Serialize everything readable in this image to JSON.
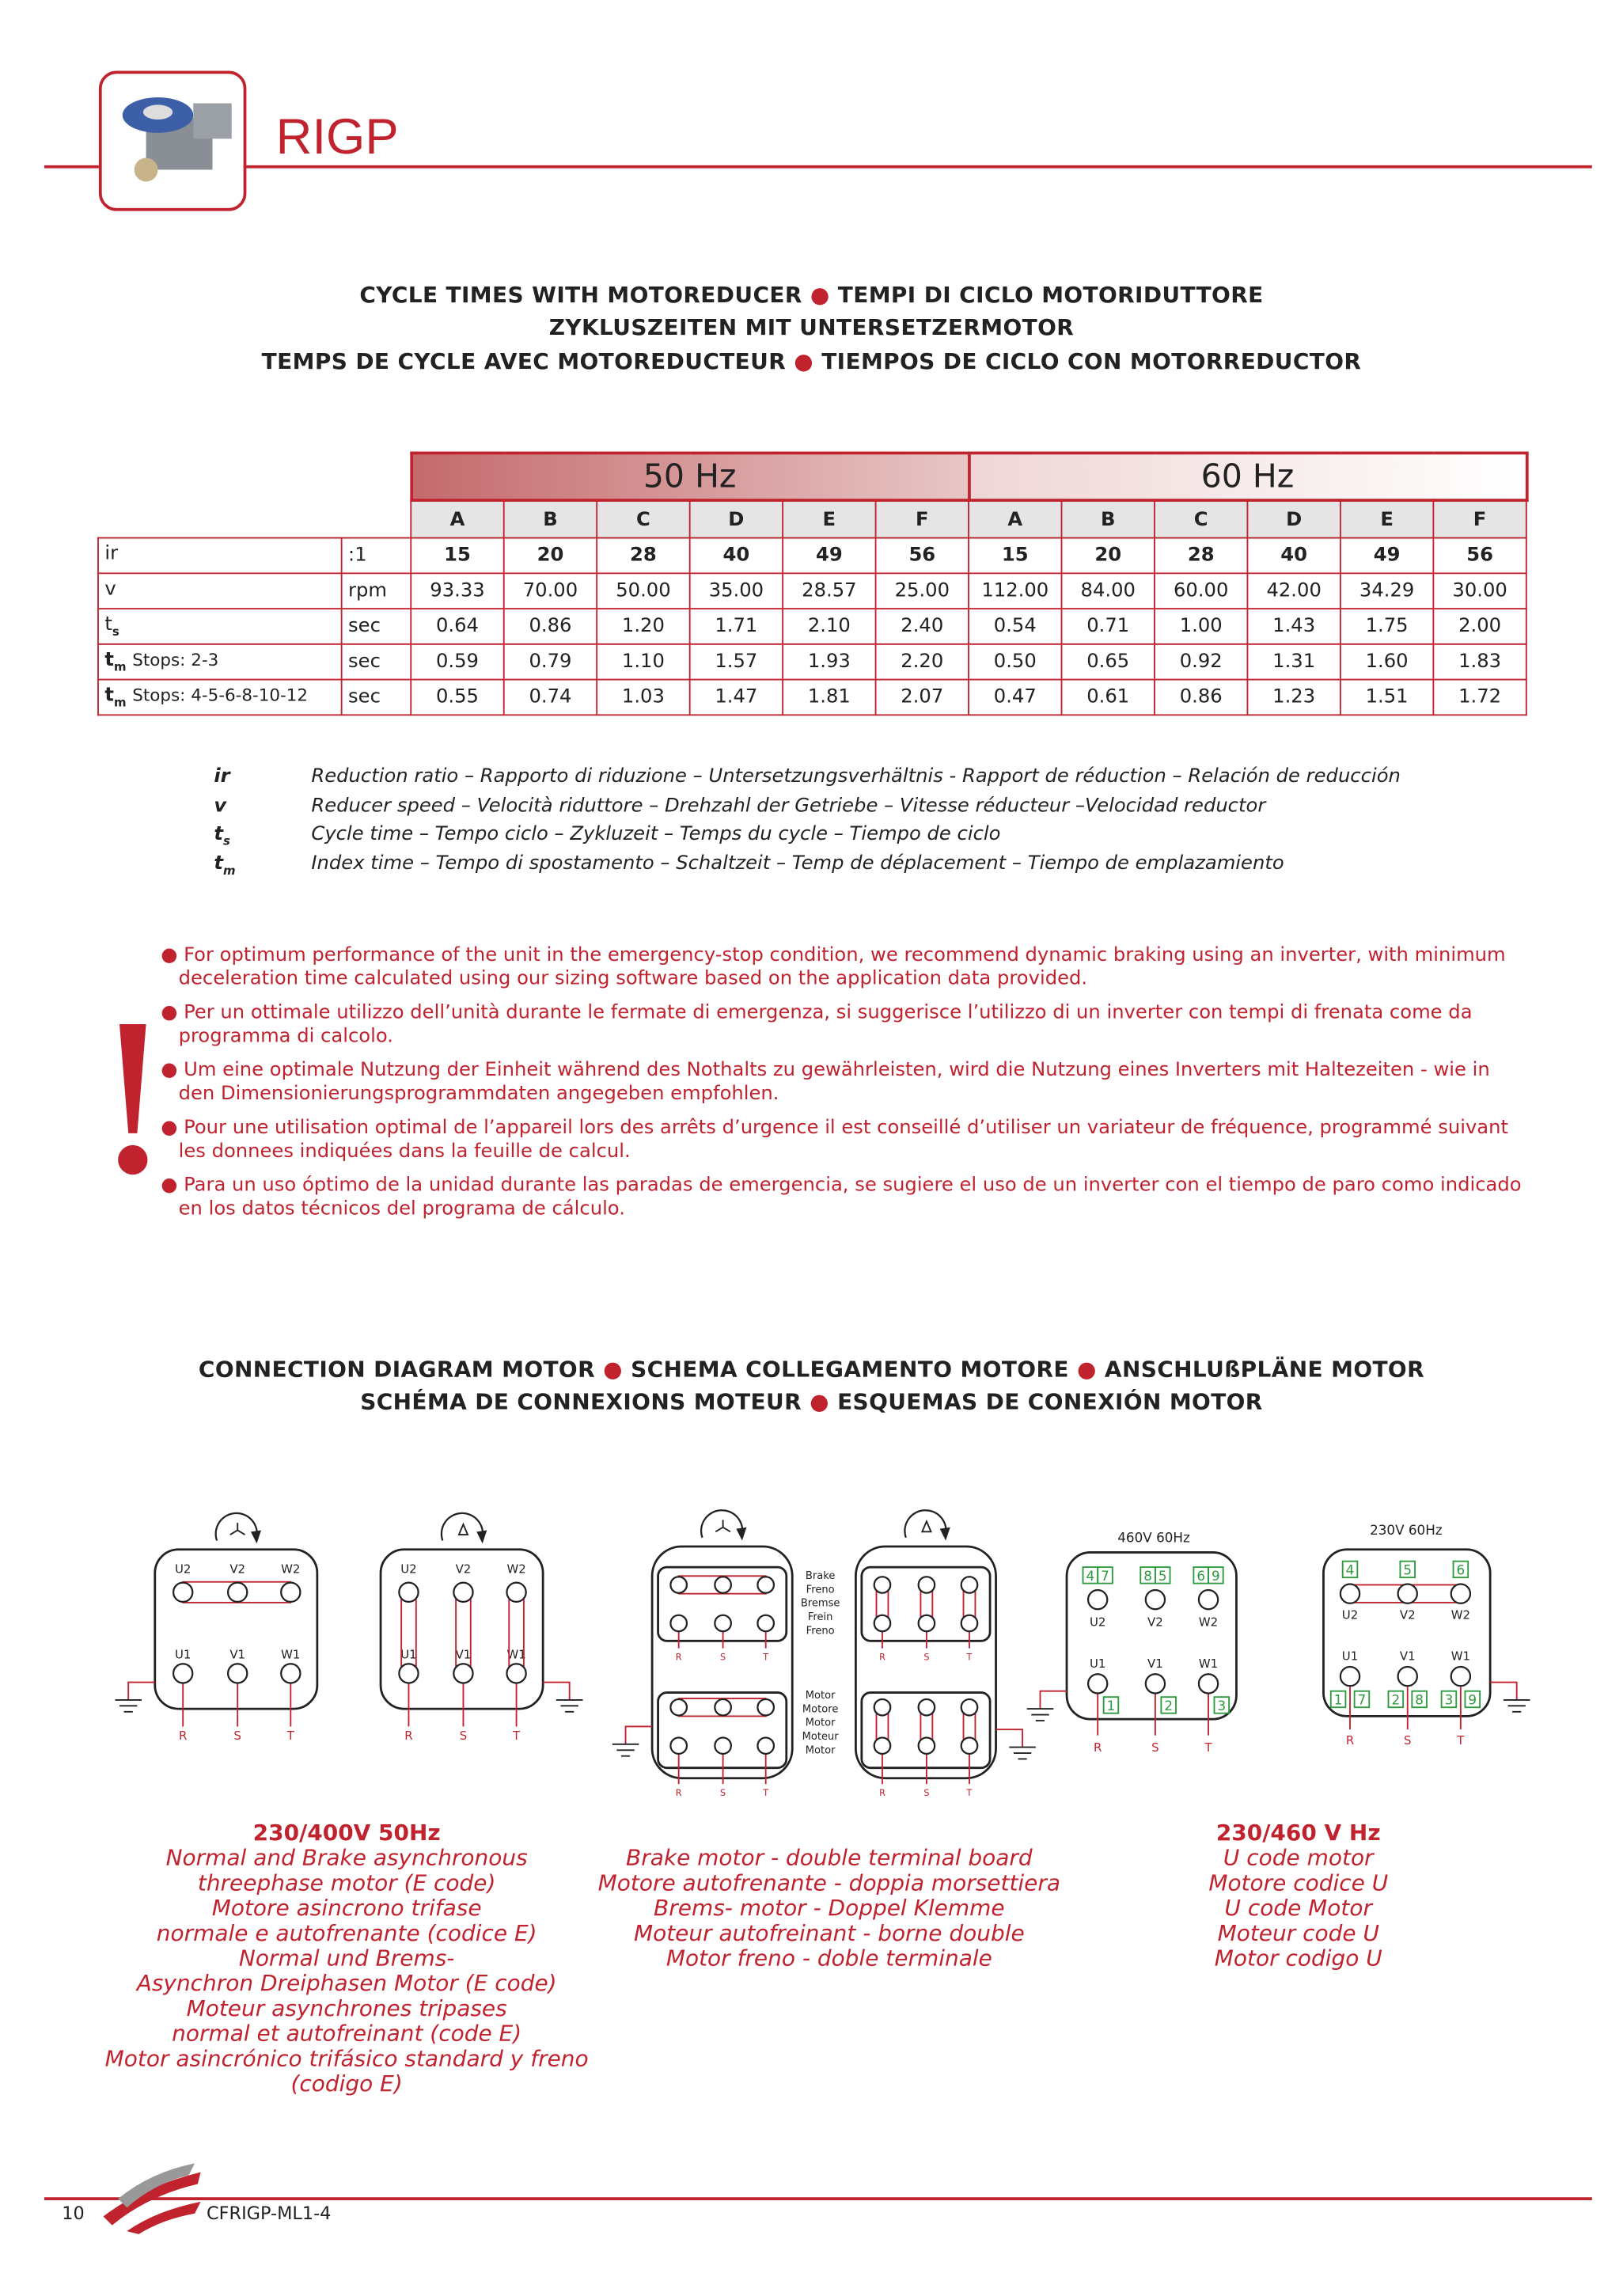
{
  "header": {
    "brand": "RIGP"
  },
  "cycle_title": [
    "CYCLE TIMES WITH MOTOREDUCER",
    "TEMPI DI CICLO MOTORIDUTTORE",
    "ZYKLUSZEITEN MIT UNTERSETZERMOTOR",
    "TEMPS DE CYCLE AVEC MOTOREDUCTEUR",
    "TIEMPOS DE CICLO CON MOTORREDUCTOR"
  ],
  "bullet": "●",
  "table": {
    "groups": [
      "50 Hz",
      "60 Hz"
    ],
    "columns": [
      "A",
      "B",
      "C",
      "D",
      "E",
      "F",
      "A",
      "B",
      "C",
      "D",
      "E",
      "F"
    ],
    "rows": [
      {
        "label": "ir",
        "sub": "",
        "extra": "",
        "unit": ":1",
        "values": [
          "15",
          "20",
          "28",
          "40",
          "49",
          "56",
          "15",
          "20",
          "28",
          "40",
          "49",
          "56"
        ]
      },
      {
        "label": "v",
        "sub": "",
        "extra": "",
        "unit": "rpm",
        "values": [
          "93.33",
          "70.00",
          "50.00",
          "35.00",
          "28.57",
          "25.00",
          "112.00",
          "84.00",
          "60.00",
          "42.00",
          "34.29",
          "30.00"
        ]
      },
      {
        "label": "t",
        "sub": "s",
        "extra": "",
        "unit": "sec",
        "values": [
          "0.64",
          "0.86",
          "1.20",
          "1.71",
          "2.10",
          "2.40",
          "0.54",
          "0.71",
          "1.00",
          "1.43",
          "1.75",
          "2.00"
        ]
      },
      {
        "label": "t",
        "sub": "m",
        "extra": "Stops: 2-3",
        "unit": "sec",
        "values": [
          "0.59",
          "0.79",
          "1.10",
          "1.57",
          "1.93",
          "2.20",
          "0.50",
          "0.65",
          "0.92",
          "1.31",
          "1.60",
          "1.83"
        ]
      },
      {
        "label": "t",
        "sub": "m",
        "extra": "Stops: 4-5-6-8-10-12",
        "unit": "sec",
        "values": [
          "0.55",
          "0.74",
          "1.03",
          "1.47",
          "1.81",
          "2.07",
          "0.47",
          "0.61",
          "0.86",
          "1.23",
          "1.51",
          "1.72"
        ]
      }
    ]
  },
  "legend": [
    {
      "sym": "ir",
      "sub": "",
      "text": "Reduction ratio – Rapporto di riduzione – Untersetzungsverhältnis - Rapport de réduction – Relación de reducción"
    },
    {
      "sym": "v",
      "sub": "",
      "text": "Reducer speed – Velocità riduttore – Drehzahl der Getriebe – Vitesse réducteur –Velocidad reductor"
    },
    {
      "sym": "t",
      "sub": "s",
      "text": "Cycle time – Tempo ciclo – Zykluzeit – Temps du cycle – Tiempo de ciclo"
    },
    {
      "sym": "t",
      "sub": "m",
      "text": "Index time – Tempo di spostamento – Schaltzeit – Temp de déplacement – Tiempo de emplazamiento"
    }
  ],
  "notes": [
    "For optimum performance of the unit in the emergency-stop condition, we recommend dynamic braking using an inverter, with minimum deceleration time calculated using our sizing software based on the application data provided.",
    "Per un ottimale utilizzo dell’unità durante le fermate di emergenza, si suggerisce l’utilizzo di un inverter con tempi di frenata come da programma di calcolo.",
    "Um eine optimale Nutzung der Einheit während des Nothalts zu gewährleisten, wird die Nutzung eines Inverters mit Haltezeiten - wie in  den Dimensionierungsprogrammdaten angegeben empfohlen.",
    "Pour une utilisation optimal de l’appareil lors des arrêts d’urgence il est conseillé d’utiliser un variateur de fréquence, programmé suivant les donnees indiquées dans la feuille de calcul.",
    "Para un uso óptimo de la unidad durante las paradas de emergencia, se sugiere el uso de un inverter con el tiempo de paro como indicado en los datos técnicos del programa de cálculo."
  ],
  "connection_title": [
    "CONNECTION DIAGRAM MOTOR",
    "SCHEMA COLLEGAMENTO MOTORE",
    "ANSCHLUßPLÄNE MOTOR",
    "SCHÉMA DE CONNEXIONS MOTEUR",
    "ESQUEMAS DE CONEXIÓN MOTOR"
  ],
  "diagrams": {
    "top_labels": [
      "U2",
      "V2",
      "W2"
    ],
    "bottom_labels": [
      "U1",
      "V1",
      "W1"
    ],
    "lines": [
      "R",
      "S",
      "T"
    ],
    "brake_labels": [
      "Brake",
      "Freno",
      "Bremse",
      "Frein",
      "Freno"
    ],
    "motor_labels": [
      "Motor",
      "Motore",
      "Motor",
      "Moteur",
      "Motor"
    ],
    "v460": {
      "title": "460V 60Hz",
      "top": [
        "4",
        "7",
        "8",
        "5",
        "6",
        "9"
      ],
      "bottom": [
        "1",
        "2",
        "3"
      ]
    },
    "v230": {
      "title": "230V 60Hz",
      "top": [
        "4",
        "5",
        "6"
      ],
      "bottom": [
        "1",
        "7",
        "2",
        "8",
        "3",
        "9"
      ]
    },
    "colors": {
      "red": "#c0222e",
      "green": "#2e9a3e"
    }
  },
  "captions": {
    "left": {
      "title": "230/400V 50Hz",
      "lines": [
        "Normal and Brake asynchronous",
        "threephase motor (E code)",
        "Motore asincrono trifase",
        "normale e autofrenante (codice E)",
        "Normal und Brems-",
        "Asynchron Dreiphasen Motor (E code)",
        "Moteur asynchrones tripases",
        "normal et autofreinant (code E)",
        "Motor asincrónico trifásico standard y freno",
        "(codigo E)"
      ]
    },
    "middle": {
      "lines": [
        "Brake motor - double terminal board",
        "Motore autofrenante - doppia morsettiera",
        "Brems- motor - Doppel Klemme",
        "Moteur autofreinant - borne double",
        "Motor freno - doble terminale"
      ]
    },
    "right": {
      "title": "230/460 V Hz",
      "lines": [
        "U code motor",
        "Motore codice U",
        "U code Motor",
        "Moteur code U",
        "Motor codigo U"
      ]
    }
  },
  "footer": {
    "page": "10",
    "code": "CFRIGP-ML1-4"
  }
}
